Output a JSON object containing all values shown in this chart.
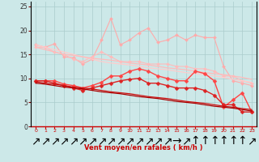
{
  "x": [
    0,
    1,
    2,
    3,
    4,
    5,
    6,
    7,
    8,
    9,
    10,
    11,
    12,
    13,
    14,
    15,
    16,
    17,
    18,
    19,
    20,
    21,
    22,
    23
  ],
  "bg_color": "#cce8e8",
  "grid_color": "#aacccc",
  "xlabel": "Vent moyen/en rafales ( km/h )",
  "yticks": [
    0,
    5,
    10,
    15,
    20,
    25
  ],
  "arrow_labels": [
    "↗",
    "↗",
    "↗",
    "↗",
    "↗",
    "↗",
    "↗",
    "↗",
    "↗",
    "↗",
    "↗",
    "↗",
    "↗",
    "↗",
    "↗",
    "→",
    "↗",
    "↑",
    "↑",
    "↑",
    "↑",
    "↑",
    "↑",
    "↗"
  ],
  "lines": [
    {
      "color": "#ffaaaa",
      "lw": 0.8,
      "marker": "D",
      "ms": 2.0,
      "y": [
        17.0,
        16.5,
        17.2,
        14.5,
        14.3,
        13.0,
        14.0,
        18.0,
        22.5,
        17.0,
        18.0,
        19.5,
        20.5,
        17.5,
        18.0,
        19.0,
        18.0,
        19.0,
        18.5,
        18.5,
        12.5,
        9.5,
        9.0,
        8.5
      ]
    },
    {
      "color": "#ffbbbb",
      "lw": 0.8,
      "marker": "D",
      "ms": 2.0,
      "y": [
        16.5,
        16.5,
        15.5,
        15.0,
        14.0,
        13.5,
        14.5,
        15.5,
        14.5,
        13.5,
        13.5,
        13.5,
        13.0,
        13.0,
        13.0,
        12.5,
        12.5,
        12.0,
        12.0,
        11.5,
        10.5,
        10.5,
        9.5,
        9.0
      ]
    },
    {
      "color": "#ffcccc",
      "lw": 0.9,
      "marker": null,
      "ms": 0,
      "y": [
        17.0,
        16.5,
        16.0,
        15.5,
        15.0,
        14.5,
        14.0,
        13.5,
        13.2,
        13.0,
        12.8,
        12.5,
        12.2,
        12.0,
        11.8,
        11.5,
        11.2,
        11.0,
        10.8,
        10.5,
        10.2,
        9.8,
        9.5,
        9.2
      ]
    },
    {
      "color": "#ffbbbb",
      "lw": 0.9,
      "marker": null,
      "ms": 0,
      "y": [
        16.5,
        16.0,
        15.5,
        15.0,
        14.8,
        14.5,
        14.2,
        14.0,
        13.8,
        13.5,
        13.2,
        13.0,
        12.8,
        12.5,
        12.2,
        12.0,
        11.8,
        11.5,
        11.2,
        11.0,
        10.8,
        10.5,
        10.2,
        9.8
      ]
    },
    {
      "color": "#ff4444",
      "lw": 1.0,
      "marker": "D",
      "ms": 2.5,
      "y": [
        9.5,
        9.5,
        9.5,
        8.8,
        8.5,
        8.0,
        8.5,
        9.2,
        10.5,
        10.5,
        11.5,
        12.0,
        11.5,
        10.5,
        10.0,
        9.5,
        9.5,
        11.5,
        11.0,
        9.5,
        4.0,
        5.5,
        7.0,
        3.0
      ]
    },
    {
      "color": "#dd2222",
      "lw": 1.0,
      "marker": "D",
      "ms": 2.5,
      "y": [
        9.5,
        9.5,
        9.0,
        8.5,
        8.0,
        7.5,
        8.0,
        8.5,
        9.0,
        9.5,
        9.8,
        10.0,
        9.0,
        9.0,
        8.5,
        8.0,
        8.0,
        8.0,
        7.5,
        6.5,
        4.5,
        4.5,
        3.0,
        3.0
      ]
    },
    {
      "color": "#cc1111",
      "lw": 0.9,
      "marker": null,
      "ms": 0,
      "y": [
        9.3,
        9.0,
        8.8,
        8.5,
        8.2,
        8.0,
        7.8,
        7.5,
        7.2,
        7.0,
        6.8,
        6.5,
        6.2,
        6.0,
        5.8,
        5.5,
        5.2,
        5.0,
        4.8,
        4.5,
        4.2,
        4.0,
        3.7,
        3.5
      ]
    },
    {
      "color": "#aa0000",
      "lw": 0.9,
      "marker": null,
      "ms": 0,
      "y": [
        9.0,
        8.8,
        8.5,
        8.2,
        8.0,
        7.8,
        7.5,
        7.2,
        7.0,
        6.8,
        6.5,
        6.2,
        6.0,
        5.8,
        5.5,
        5.2,
        5.0,
        4.8,
        4.5,
        4.2,
        4.0,
        3.8,
        3.5,
        3.2
      ]
    }
  ]
}
